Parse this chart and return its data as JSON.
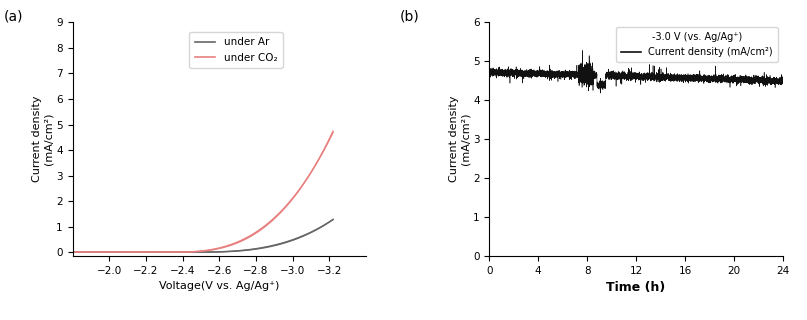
{
  "panel_a": {
    "xlabel": "Voltage(V vs. Ag/Ag⁺)",
    "ylabel": "Current density\n(mA/cm²)",
    "xlim": [
      -1.8,
      -3.4
    ],
    "ylim": [
      -0.15,
      9
    ],
    "yticks": [
      0,
      1,
      2,
      3,
      4,
      5,
      6,
      7,
      8,
      9
    ],
    "xticks": [
      -2.0,
      -2.2,
      -2.4,
      -2.6,
      -2.8,
      -3.0,
      -3.2
    ],
    "ar_color": "#666666",
    "co2_color": "#e88080",
    "legend_labels": [
      "under Ar",
      "under CO₂"
    ],
    "ar_onset": -2.45,
    "ar_scale": 2.8,
    "ar_power": 3.0,
    "ar2_onset": -2.42,
    "ar2_scale": 2.5,
    "ar2_power": 3.0,
    "co2_onset": -2.35,
    "co2_scale": 7.0,
    "co2_power": 2.8,
    "co2_2onset": -2.33,
    "co2_2scale": 6.5,
    "co2_2power": 2.8
  },
  "panel_b": {
    "xlabel": "Time (h)",
    "ylabel": "Current density\n(mA/cm²)",
    "xlim": [
      0,
      24
    ],
    "ylim": [
      0,
      6
    ],
    "yticks": [
      0,
      1,
      2,
      3,
      4,
      5,
      6
    ],
    "xticks": [
      0,
      4,
      8,
      12,
      16,
      20,
      24
    ],
    "line_color": "#111111",
    "legend_line1": "Current density (mA/cm²)",
    "legend_line2": "-3.0 V (vs. Ag/Ag⁺)",
    "baseline": 4.72,
    "noise_std": 0.045,
    "drift_end": 4.5
  }
}
